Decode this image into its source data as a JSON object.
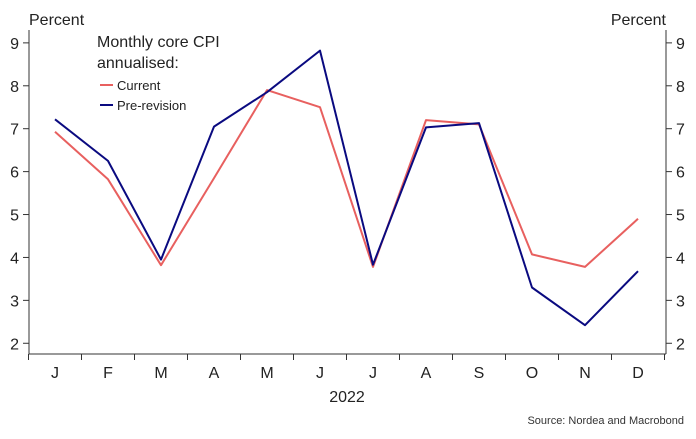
{
  "chart_data": {
    "type": "line",
    "title": "",
    "left_unit": "Percent",
    "right_unit": "Percent",
    "xlabel": "2022",
    "categories": [
      "J",
      "F",
      "M",
      "A",
      "M",
      "J",
      "J",
      "A",
      "S",
      "O",
      "N",
      "D"
    ],
    "ylim": [
      1.75,
      9.3
    ],
    "yticks": [
      "2",
      "3",
      "4",
      "5",
      "6",
      "7",
      "8",
      "9"
    ],
    "ytick_values": [
      2,
      3,
      4,
      5,
      6,
      7,
      8,
      9
    ],
    "legend_title_line1": "Monthly core CPI",
    "legend_title_line2": "annualised:",
    "series": [
      {
        "name": "Current",
        "color": "#e8605f",
        "values": [
          6.93,
          5.82,
          3.82,
          5.85,
          7.9,
          7.5,
          3.78,
          7.2,
          7.1,
          4.07,
          3.78,
          4.9
        ]
      },
      {
        "name": "Pre-revision",
        "color": "#0a0a80",
        "values": [
          7.22,
          6.25,
          3.95,
          7.05,
          7.85,
          8.82,
          3.83,
          7.03,
          7.13,
          3.3,
          2.42,
          3.68
        ]
      }
    ],
    "source": "Source: Nordea and Macrobond"
  }
}
